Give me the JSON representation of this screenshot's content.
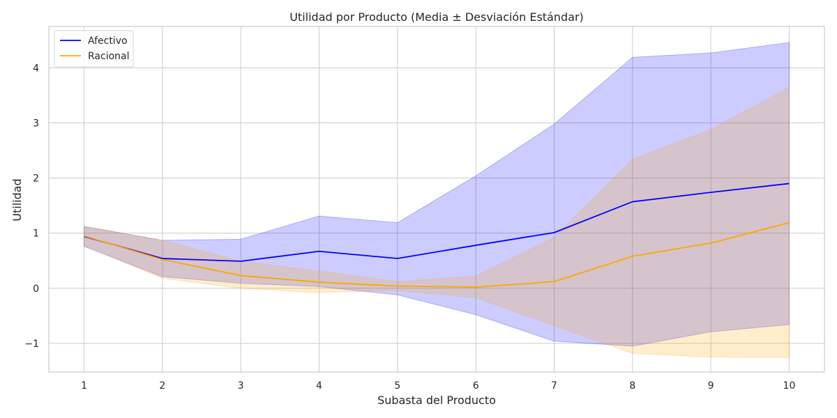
{
  "chart_data": {
    "type": "line",
    "title": "Utilidad por Producto (Media ± Desviación Estándar)",
    "xlabel": "Subasta del Producto",
    "ylabel": "Utilidad",
    "x": [
      1,
      2,
      3,
      4,
      5,
      6,
      7,
      8,
      9,
      10
    ],
    "xlim": [
      0.55,
      10.45
    ],
    "ylim": [
      -1.52,
      4.75
    ],
    "xticks": [
      1,
      2,
      3,
      4,
      5,
      6,
      7,
      8,
      9,
      10
    ],
    "yticks": [
      -1,
      0,
      1,
      2,
      3,
      4
    ],
    "ytick_labels": [
      "−1",
      "0",
      "1",
      "2",
      "3",
      "4"
    ],
    "grid": true,
    "legend": "top-left",
    "series": [
      {
        "name": "Afectivo",
        "color": "#0000ff",
        "band_color": "#0000ff",
        "mean": [
          0.94,
          0.54,
          0.49,
          0.67,
          0.54,
          0.78,
          1.01,
          1.57,
          1.74,
          1.9
        ],
        "upper": [
          1.12,
          0.87,
          0.89,
          1.31,
          1.19,
          2.04,
          2.98,
          4.19,
          4.27,
          4.46
        ],
        "lower": [
          0.76,
          0.21,
          0.09,
          0.03,
          -0.12,
          -0.48,
          -0.96,
          -1.05,
          -0.79,
          -0.66
        ]
      },
      {
        "name": "Racional",
        "color": "#ffa500",
        "band_color": "#ffa500",
        "mean": [
          0.95,
          0.52,
          0.23,
          0.11,
          0.04,
          0.02,
          0.12,
          0.58,
          0.82,
          1.19
        ],
        "upper": [
          1.13,
          0.87,
          0.49,
          0.31,
          0.12,
          0.22,
          0.92,
          2.34,
          2.88,
          3.64
        ],
        "lower": [
          0.77,
          0.18,
          0.0,
          -0.08,
          -0.04,
          -0.17,
          -0.68,
          -1.18,
          -1.25,
          -1.26
        ]
      }
    ]
  }
}
